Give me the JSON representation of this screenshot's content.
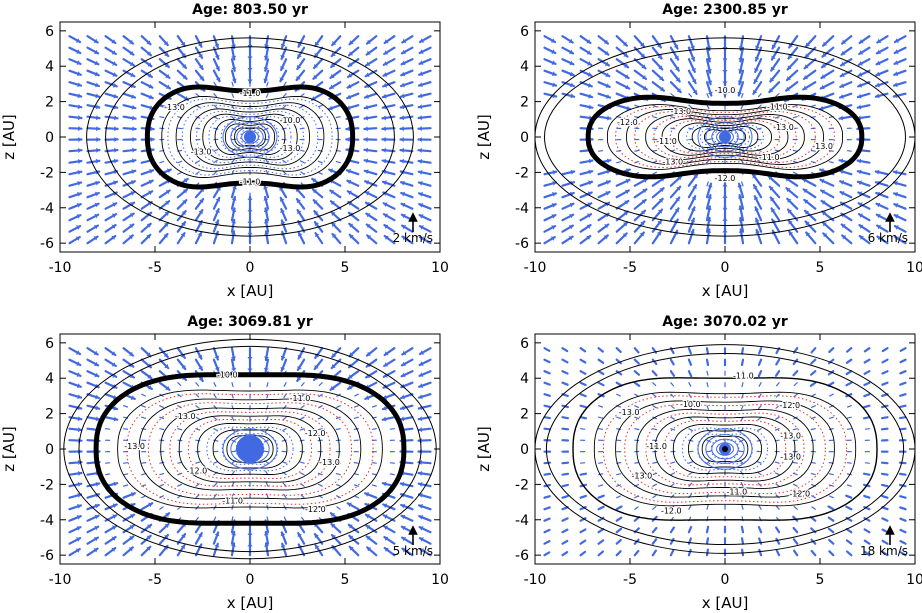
{
  "chart_data": [
    {
      "type": "contour",
      "title": "Age: 803.50 yr",
      "xlabel": "x [AU]",
      "ylabel": "z [AU]",
      "xlim": [
        -10,
        10
      ],
      "ylim": [
        -6.5,
        6.5
      ],
      "xticks": [
        "-10",
        "-5",
        "0",
        "5",
        "10"
      ],
      "yticks": [
        "-6",
        "-4",
        "-2",
        "0",
        "2",
        "4",
        "6"
      ],
      "vector_scale_label": "2 km/s",
      "contour_labels": [
        "-10.0",
        "-11.0",
        "-13.0",
        "-13.0",
        "-11.0",
        "-13.0"
      ],
      "outer_contours": [
        {
          "a": 7.6,
          "b": 5.1
        },
        {
          "a": 8.6,
          "b": 5.6
        }
      ],
      "boundary": {
        "a": 5.4,
        "b": 3.4,
        "waist": 2.6
      },
      "inner_shells": [
        5,
        9,
        14,
        22,
        32,
        45
      ]
    },
    {
      "type": "contour",
      "title": "Age: 2300.85 yr",
      "xlabel": "x [AU]",
      "ylabel": "z [AU]",
      "xlim": [
        -10,
        10
      ],
      "ylim": [
        -6.5,
        6.5
      ],
      "xticks": [
        "-10",
        "-5",
        "0",
        "5",
        "10"
      ],
      "yticks": [
        "-6",
        "-4",
        "-2",
        "0",
        "2",
        "4",
        "6"
      ],
      "vector_scale_label": "6 km/s",
      "contour_labels": [
        "-13.0",
        "-11.0",
        "-10.0",
        "-13.0",
        "-12.0",
        "-11.0",
        "-13.0",
        "-12.0",
        "-11.0",
        "-13.0"
      ],
      "outer_contours": [
        {
          "a": 9.5,
          "b": 5.0
        },
        {
          "a": 10.0,
          "b": 5.6
        }
      ],
      "boundary": {
        "a": 7.2,
        "b": 2.8,
        "waist": 1.9
      },
      "inner_shells": [
        5,
        9,
        14,
        22,
        32,
        45
      ]
    },
    {
      "type": "contour",
      "title": "Age: 3069.81 yr",
      "xlabel": "x [AU]",
      "ylabel": "z [AU]",
      "xlim": [
        -10,
        10
      ],
      "ylim": [
        -6.5,
        6.5
      ],
      "xticks": [
        "-10",
        "-5",
        "0",
        "5",
        "10"
      ],
      "yticks": [
        "-6",
        "-4",
        "-2",
        "0",
        "2",
        "4",
        "6"
      ],
      "vector_scale_label": "5 km/s",
      "contour_labels": [
        "-12.0",
        "-11.0",
        "-10.0",
        "-13.0",
        "-13.0",
        "-12.0",
        "-11.0",
        "-12.0",
        "-13.0"
      ],
      "outer_contours": [
        {
          "a": 9.0,
          "b": 5.8
        },
        {
          "a": 9.8,
          "b": 6.2
        }
      ],
      "boundary": {
        "a": 8.1,
        "b": 4.6,
        "waist": 4.2
      },
      "inner_shells": [
        5,
        9,
        14,
        22,
        32,
        45
      ]
    },
    {
      "type": "contour",
      "title": "Age: 3070.02 yr",
      "xlabel": "x [AU]",
      "ylabel": "z [AU]",
      "xlim": [
        -10,
        10
      ],
      "ylim": [
        -6.5,
        6.5
      ],
      "xticks": [
        "-10",
        "-5",
        "0",
        "5",
        "10"
      ],
      "yticks": [
        "-6",
        "-4",
        "-2",
        "0",
        "2",
        "4",
        "6"
      ],
      "vector_scale_label": "18 km/s",
      "contour_labels": [
        "-13.0",
        "-12.0",
        "-11.0",
        "-10.0",
        "-13.0",
        "-11.0",
        "-13.0",
        "-12.0",
        "-11.0",
        "-12.0",
        "-13.0"
      ],
      "outer_contours": [
        {
          "a": 10.0,
          "b": 5.9
        },
        {
          "a": 9.4,
          "b": 5.4
        }
      ],
      "boundary": {
        "a": 8.0,
        "b": 4.5,
        "waist": 4.0
      },
      "inner_shells": [
        5,
        9,
        14,
        22,
        32,
        45
      ]
    }
  ],
  "colors": {
    "vector": "#4169e1",
    "contour_solid": "#000000",
    "contour_blue_dotted": "#4169e1",
    "contour_red_dotted": "#e0302a"
  }
}
